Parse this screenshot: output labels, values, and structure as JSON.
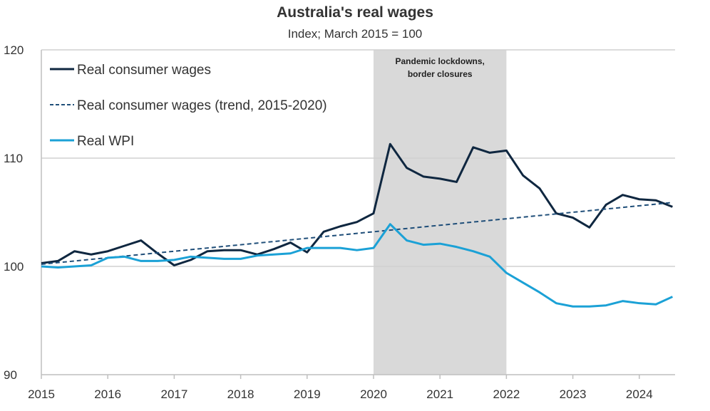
{
  "chart_data": {
    "type": "line",
    "title": "Australia's real wages",
    "subtitle": "Index; March 2015 = 100",
    "xlabel": "",
    "ylabel": "",
    "ylim": [
      90,
      120
    ],
    "yticks": [
      "90",
      "100",
      "110",
      "120"
    ],
    "xticks": [
      "2015",
      "2016",
      "2017",
      "2018",
      "2019",
      "2020",
      "2021",
      "2022",
      "2023",
      "2024"
    ],
    "x_start": "2015 Q1",
    "frequency": "quarterly",
    "grid": true,
    "legend_position": "top-left",
    "shaded_region": {
      "from": "2020 Q1",
      "to": "2022 Q1",
      "label_line1": "Pandemic lockdowns,",
      "label_line2": "border closures",
      "color": "#d9d9d9"
    },
    "series": [
      {
        "name": "Real consumer wages",
        "color": "#0f2740",
        "style": "solid",
        "values": [
          100.3,
          100.5,
          101.4,
          101.1,
          101.4,
          101.9,
          102.4,
          101.2,
          100.1,
          100.6,
          101.4,
          101.5,
          101.5,
          101.1,
          101.6,
          102.2,
          101.3,
          103.2,
          103.7,
          104.1,
          104.9,
          111.3,
          109.1,
          108.3,
          108.1,
          107.8,
          111.0,
          110.5,
          110.7,
          108.4,
          107.2,
          104.9,
          104.5,
          103.6,
          105.7,
          106.6,
          106.2,
          106.1,
          105.5
        ]
      },
      {
        "name": "Real consumer wages (trend, 2015-2020)",
        "color": "#1f4e79",
        "style": "dashed",
        "values": [
          100.2,
          105.9
        ]
      },
      {
        "name": "Real WPI",
        "color": "#1ba1d6",
        "style": "solid",
        "values": [
          100.0,
          99.9,
          100.0,
          100.1,
          100.8,
          100.9,
          100.5,
          100.5,
          100.6,
          100.9,
          100.8,
          100.7,
          100.7,
          101.0,
          101.1,
          101.2,
          101.7,
          101.7,
          101.7,
          101.5,
          101.7,
          103.9,
          102.4,
          102.0,
          102.1,
          101.8,
          101.4,
          100.9,
          99.4,
          98.5,
          97.6,
          96.6,
          96.3,
          96.3,
          96.4,
          96.8,
          96.6,
          96.5,
          97.2
        ]
      }
    ]
  }
}
